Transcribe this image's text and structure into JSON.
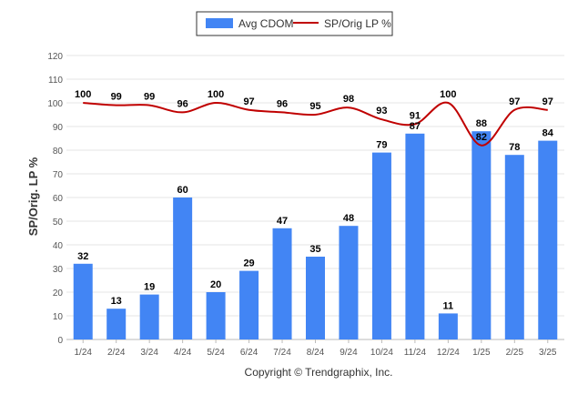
{
  "chart_data": {
    "type": "bar",
    "categories": [
      "1/24",
      "2/24",
      "3/24",
      "4/24",
      "5/24",
      "6/24",
      "7/24",
      "8/24",
      "9/24",
      "10/24",
      "11/24",
      "12/24",
      "1/25",
      "2/25",
      "3/25"
    ],
    "series": [
      {
        "name": "Avg CDOM",
        "type": "bar",
        "color": "#4285f4",
        "values": [
          32,
          13,
          19,
          60,
          20,
          29,
          47,
          35,
          48,
          79,
          87,
          11,
          88,
          78,
          84
        ],
        "labels": [
          "32",
          "13",
          "19",
          "60",
          "20",
          "29",
          "47",
          "35",
          "48",
          "79",
          "87",
          "11",
          "88",
          "78",
          "84"
        ]
      },
      {
        "name": "SP/Orig LP %",
        "type": "line",
        "color": "#c00000",
        "values": [
          100,
          99,
          99,
          96,
          100,
          97,
          96,
          95,
          98,
          93,
          91,
          100,
          82,
          97,
          97
        ],
        "labels": [
          "100",
          "99",
          "99",
          "96",
          "100",
          "97",
          "96",
          "95",
          "98",
          "93",
          "91",
          "100",
          "82",
          "97",
          "97"
        ]
      }
    ],
    "ylabel": "SP/Orig. LP %",
    "xlabel": "",
    "ylim": [
      0,
      120
    ],
    "yticks": [
      0,
      10,
      20,
      30,
      40,
      50,
      60,
      70,
      80,
      90,
      100,
      110,
      120
    ],
    "grid": true,
    "legend_position": "top-center"
  },
  "footer": {
    "copyright": "Copyright © Trendgraphix, Inc."
  }
}
